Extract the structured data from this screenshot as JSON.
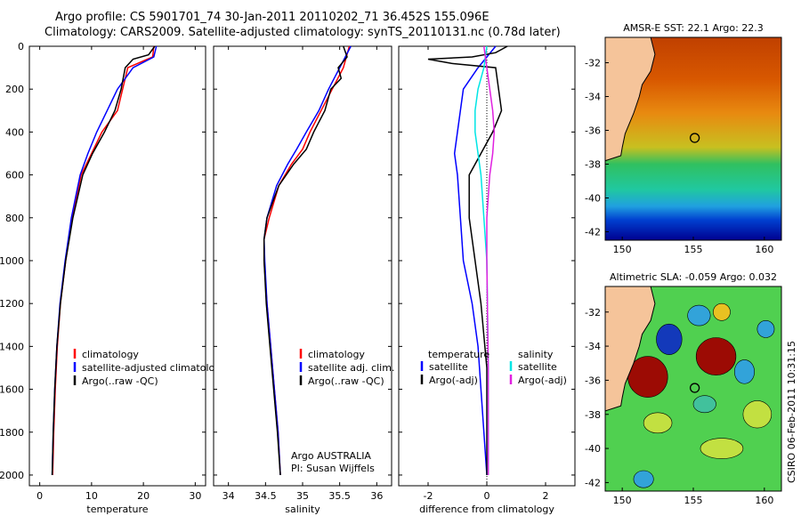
{
  "header": {
    "line1": "Argo profile: CS 5901701_74 30-Jan-2011 20110202_71 36.452S 155.096E",
    "line2": "Climatology: CARS2009. Satellite-adjusted climatology: synTS_20110131.nc (0.78d later)"
  },
  "side_stamp": "CSIRO 06-Feb-2011 10:31:15",
  "colors": {
    "argo": "#000000",
    "climatology": "#ff0000",
    "satellite": "#0000ff",
    "satellite_salinity": "#00e5e5",
    "argo_adj_salinity": "#e020e0",
    "land": "#f5c49a"
  },
  "chart_data": [
    {
      "id": "temperature",
      "type": "line",
      "xlabel": "temperature",
      "ylabel": "",
      "xlim": [
        -2,
        32
      ],
      "ylim": [
        2050,
        0
      ],
      "xticks": [
        0,
        10,
        20,
        30
      ],
      "xtick_labels": [
        "0",
        "10",
        "20",
        "30"
      ],
      "yticks": [
        0,
        200,
        400,
        600,
        800,
        1000,
        1200,
        1400,
        1600,
        1800,
        2000
      ],
      "ytick_labels": [
        "0",
        "200",
        "400",
        "600",
        "800",
        "1000",
        "1200",
        "1400",
        "1600",
        "1800",
        "2000"
      ],
      "legend": [
        "climatology",
        "satellite-adjusted climatology",
        "Argo(..raw -QC)"
      ],
      "series": [
        {
          "name": "climatology",
          "color_key": "climatology",
          "x": [
            22.0,
            21.8,
            17.0,
            16.0,
            15.0,
            12.0,
            10.0,
            8.0,
            6.3,
            5.0,
            4.0,
            3.4,
            3.0,
            2.7,
            2.5
          ],
          "y": [
            0,
            50,
            100,
            200,
            300,
            400,
            500,
            600,
            800,
            1000,
            1200,
            1400,
            1600,
            1800,
            2000
          ]
        },
        {
          "name": "satellite-adjusted climatology",
          "color_key": "satellite",
          "x": [
            22.5,
            22.0,
            18.0,
            15.0,
            13.0,
            11.0,
            9.3,
            7.8,
            6.1,
            4.9,
            3.9,
            3.3,
            2.9,
            2.6,
            2.4
          ],
          "y": [
            0,
            50,
            100,
            200,
            300,
            400,
            500,
            600,
            800,
            1000,
            1200,
            1400,
            1600,
            1800,
            2000
          ]
        },
        {
          "name": "Argo(..raw -QC)",
          "color_key": "argo",
          "x": [
            22.2,
            21.0,
            18.0,
            16.5,
            15.7,
            14.5,
            12.5,
            10.2,
            8.3,
            6.4,
            5.0,
            4.0,
            3.3,
            2.9,
            2.6,
            2.4
          ],
          "y": [
            0,
            40,
            60,
            100,
            200,
            300,
            400,
            500,
            600,
            800,
            1000,
            1200,
            1400,
            1600,
            1800,
            2000
          ]
        }
      ]
    },
    {
      "id": "salinity",
      "type": "line",
      "xlabel": "salinity",
      "ylabel": "",
      "xlim": [
        33.8,
        36.2
      ],
      "ylim": [
        2050,
        0
      ],
      "xticks": [
        34,
        34.5,
        35,
        35.5,
        36
      ],
      "xtick_labels": [
        "34",
        "34.5",
        "35",
        "35.5",
        "36"
      ],
      "legend": [
        "climatology",
        "satellite adj. clim.",
        "Argo(..raw -QC)"
      ],
      "annotation": [
        "Argo AUSTRALIA",
        "PI: Susan Wijffels"
      ],
      "series": [
        {
          "name": "climatology",
          "color_key": "climatology",
          "x": [
            35.63,
            35.55,
            35.4,
            35.25,
            35.1,
            35.0,
            34.85,
            34.68,
            34.55,
            34.48,
            34.48,
            34.52,
            34.57,
            34.62,
            34.67,
            34.7
          ],
          "y": [
            0,
            100,
            200,
            300,
            400,
            480,
            550,
            650,
            800,
            900,
            1000,
            1200,
            1400,
            1600,
            1800,
            2000
          ]
        },
        {
          "name": "satellite adj. clim.",
          "color_key": "satellite",
          "x": [
            35.65,
            35.5,
            35.35,
            35.22,
            35.05,
            34.92,
            34.8,
            34.65,
            34.52,
            34.48,
            34.49,
            34.52,
            34.57,
            34.62,
            34.67,
            34.7
          ],
          "y": [
            0,
            100,
            200,
            300,
            400,
            480,
            550,
            650,
            800,
            900,
            1000,
            1200,
            1400,
            1600,
            1800,
            2000
          ]
        },
        {
          "name": "Argo(..raw -QC)",
          "color_key": "argo",
          "x": [
            35.55,
            35.6,
            35.48,
            35.52,
            35.38,
            35.3,
            35.15,
            35.05,
            34.88,
            34.68,
            34.52,
            34.48,
            34.48,
            34.51,
            34.56,
            34.61,
            34.66,
            34.7
          ],
          "y": [
            0,
            50,
            100,
            150,
            200,
            300,
            400,
            480,
            550,
            650,
            800,
            900,
            1000,
            1200,
            1400,
            1600,
            1800,
            2000
          ]
        }
      ]
    },
    {
      "id": "difference",
      "type": "line",
      "xlabel": "difference from climatology",
      "ylabel": "",
      "xlim": [
        -3,
        3
      ],
      "ylim": [
        2050,
        0
      ],
      "xticks": [
        -2,
        0,
        2
      ],
      "xtick_labels": [
        "-2",
        "0",
        "2"
      ],
      "legend_temperature_title": "temperature",
      "legend_temperature": [
        "satellite",
        "Argo(-adj)"
      ],
      "legend_salinity_title": "salinity",
      "legend_salinity": [
        "satellite",
        "Argo(-adj)"
      ],
      "series": [
        {
          "name": "temperature satellite",
          "color_key": "satellite",
          "x": [
            0.3,
            -0.3,
            -0.8,
            -1.0,
            -1.1,
            -1.0,
            -0.9,
            -0.8,
            -0.5,
            -0.3,
            -0.1,
            0.0
          ],
          "y": [
            0,
            100,
            200,
            400,
            500,
            600,
            800,
            1000,
            1200,
            1400,
            1800,
            2000
          ]
        },
        {
          "name": "temperature Argo(-adj)",
          "color_key": "argo",
          "x": [
            0.7,
            0.3,
            -0.5,
            -2.0,
            -1.2,
            0.3,
            0.4,
            0.5,
            0.2,
            -0.2,
            -0.6,
            -0.6,
            -0.4,
            -0.2,
            0.0,
            0.0
          ],
          "y": [
            0,
            30,
            50,
            60,
            80,
            100,
            200,
            300,
            400,
            500,
            600,
            800,
            1000,
            1200,
            1500,
            2000
          ]
        },
        {
          "name": "salinity satellite",
          "color_key": "satellite_salinity",
          "x": [
            0.0,
            -0.1,
            -0.3,
            -0.4,
            -0.4,
            -0.3,
            -0.2,
            -0.1,
            0.0,
            0.05,
            0.05
          ],
          "y": [
            0,
            100,
            200,
            300,
            400,
            500,
            600,
            800,
            1000,
            1500,
            2000
          ]
        },
        {
          "name": "salinity Argo(-adj)",
          "color_key": "argo_adj_salinity",
          "x": [
            -0.1,
            0.0,
            0.1,
            0.2,
            0.25,
            0.2,
            0.1,
            0.0,
            0.0,
            0.05,
            0.05
          ],
          "y": [
            0,
            100,
            200,
            300,
            400,
            500,
            600,
            800,
            1000,
            1500,
            2000
          ]
        }
      ]
    },
    {
      "id": "sst_map",
      "type": "heatmap",
      "title": "AMSR-E SST: 22.1 Argo: 22.3",
      "xlim": [
        148.8,
        161.2
      ],
      "ylim": [
        -42.5,
        -30.5
      ],
      "xticks": [
        150,
        155,
        160
      ],
      "xtick_labels": [
        "150",
        "155",
        "160"
      ],
      "yticks": [
        -32,
        -34,
        -36,
        -38,
        -40,
        -42
      ],
      "ytick_labels": [
        "-32",
        "-34",
        "-36",
        "-38",
        "-40",
        "-42"
      ],
      "marker": {
        "lon": 155.1,
        "lat": -36.45
      },
      "bands": [
        {
          "lat": -30.5,
          "color": "#c04000"
        },
        {
          "lat": -33.0,
          "color": "#d85800"
        },
        {
          "lat": -35.0,
          "color": "#e88a10"
        },
        {
          "lat": -37.0,
          "color": "#c8c020"
        },
        {
          "lat": -38.0,
          "color": "#30c060"
        },
        {
          "lat": -39.5,
          "color": "#20c8a0"
        },
        {
          "lat": -40.5,
          "color": "#20a0e0"
        },
        {
          "lat": -41.3,
          "color": "#0040d0"
        },
        {
          "lat": -42.5,
          "color": "#000090"
        }
      ]
    },
    {
      "id": "sla_map",
      "type": "heatmap",
      "title": "Altimetric SLA: -0.059 Argo: 0.032",
      "xlim": [
        148.8,
        161.2
      ],
      "ylim": [
        -42.5,
        -30.5
      ],
      "xticks": [
        150,
        155,
        160
      ],
      "xtick_labels": [
        "150",
        "155",
        "160"
      ],
      "yticks": [
        -32,
        -34,
        -36,
        -38,
        -40,
        -42
      ],
      "ytick_labels": [
        "-32",
        "-34",
        "-36",
        "-38",
        "-40",
        "-42"
      ],
      "marker": {
        "lon": 155.1,
        "lat": -36.45
      },
      "background_color": "#50d050",
      "blobs": [
        {
          "lon": 151.8,
          "lat": -35.8,
          "rlon": 1.4,
          "rlat": 1.2,
          "color": "#a00000"
        },
        {
          "lon": 156.6,
          "lat": -34.6,
          "rlon": 1.4,
          "rlat": 1.1,
          "color": "#a00000"
        },
        {
          "lon": 153.3,
          "lat": -33.6,
          "rlon": 0.9,
          "rlat": 0.9,
          "color": "#1030c0"
        },
        {
          "lon": 158.6,
          "lat": -35.5,
          "rlon": 0.7,
          "rlat": 0.7,
          "color": "#30a0e0"
        },
        {
          "lon": 160.1,
          "lat": -33.0,
          "rlon": 0.6,
          "rlat": 0.5,
          "color": "#30a0e0"
        },
        {
          "lon": 155.4,
          "lat": -32.2,
          "rlon": 0.8,
          "rlat": 0.6,
          "color": "#30a0e0"
        },
        {
          "lon": 151.5,
          "lat": -41.8,
          "rlon": 0.7,
          "rlat": 0.5,
          "color": "#30a0e0"
        },
        {
          "lon": 157.0,
          "lat": -40.0,
          "rlon": 1.5,
          "rlat": 0.6,
          "color": "#c8e040"
        },
        {
          "lon": 152.5,
          "lat": -38.5,
          "rlon": 1.0,
          "rlat": 0.6,
          "color": "#c8e040"
        },
        {
          "lon": 159.5,
          "lat": -38.0,
          "rlon": 1.0,
          "rlat": 0.8,
          "color": "#c8e040"
        },
        {
          "lon": 157.0,
          "lat": -32.0,
          "rlon": 0.6,
          "rlat": 0.5,
          "color": "#f0c020"
        },
        {
          "lon": 155.8,
          "lat": -37.4,
          "rlon": 0.8,
          "rlat": 0.5,
          "color": "#40c0a0"
        }
      ]
    }
  ]
}
